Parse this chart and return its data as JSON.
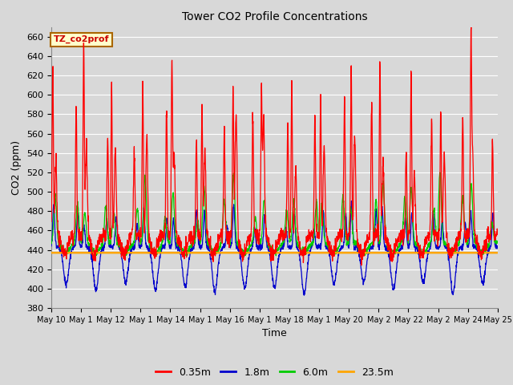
{
  "title": "Tower CO2 Profile Concentrations",
  "xlabel": "Time",
  "ylabel": "CO2 (ppm)",
  "ylim": [
    380,
    670
  ],
  "yticks": [
    380,
    400,
    420,
    440,
    460,
    480,
    500,
    520,
    540,
    560,
    580,
    600,
    620,
    640,
    660
  ],
  "annotation_text": "TZ_co2prof",
  "legend_labels": [
    "0.35m",
    "1.8m",
    "6.0m",
    "23.5m"
  ],
  "legend_colors": [
    "#ff0000",
    "#0000cc",
    "#00cc00",
    "#ffa500"
  ],
  "bg_color": "#d8d8d8",
  "plot_bg_color": "#d8d8d8",
  "grid_color": "#ffffff",
  "n_days": 15,
  "orange_level": 437,
  "xtick_labels": [
    "May 10",
    "May 1",
    "May 12",
    "May 1",
    "May 14",
    "May 1",
    "May 16",
    "May 1",
    "May 18",
    "May 1",
    "May 20",
    "May 2",
    "May 22",
    "May 2",
    "May 24",
    "May 25"
  ]
}
